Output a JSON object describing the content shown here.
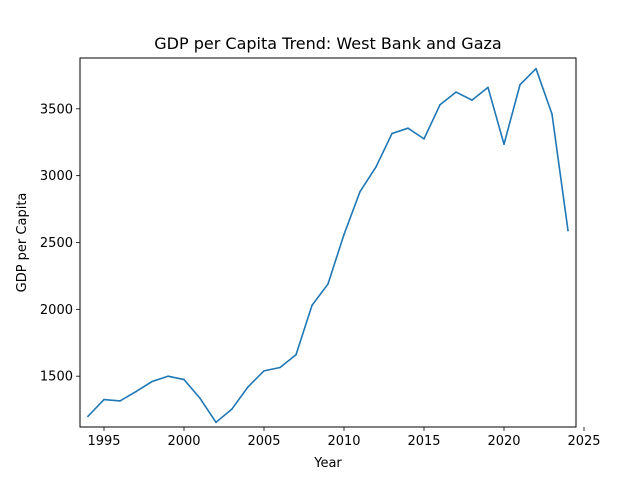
{
  "chart_data": {
    "type": "line",
    "title": "GDP per Capita Trend: West Bank and Gaza",
    "xlabel": "Year",
    "ylabel": "GDP per Capita",
    "xlim": [
      1993.5,
      2024.5
    ],
    "ylim": [
      1120,
      3880
    ],
    "xticks": [
      1995,
      2000,
      2005,
      2010,
      2015,
      2020,
      2025
    ],
    "yticks": [
      1500,
      2000,
      2500,
      3000,
      3500
    ],
    "grid": false,
    "series": [
      {
        "color": "#1f77b4",
        "x": [
          1994,
          1995,
          1996,
          1997,
          1998,
          1999,
          2000,
          2001,
          2002,
          2003,
          2004,
          2005,
          2006,
          2007,
          2008,
          2009,
          2010,
          2011,
          2012,
          2013,
          2014,
          2015,
          2016,
          2017,
          2018,
          2019,
          2020,
          2021,
          2022,
          2023,
          2024
        ],
        "y": [
          1200,
          1325,
          1315,
          1385,
          1460,
          1500,
          1475,
          1335,
          1155,
          1255,
          1420,
          1540,
          1565,
          1660,
          2030,
          2190,
          2560,
          2880,
          3065,
          3315,
          3355,
          3275,
          3530,
          3625,
          3565,
          3660,
          3235,
          3680,
          3800,
          3460,
          2590
        ]
      }
    ]
  }
}
